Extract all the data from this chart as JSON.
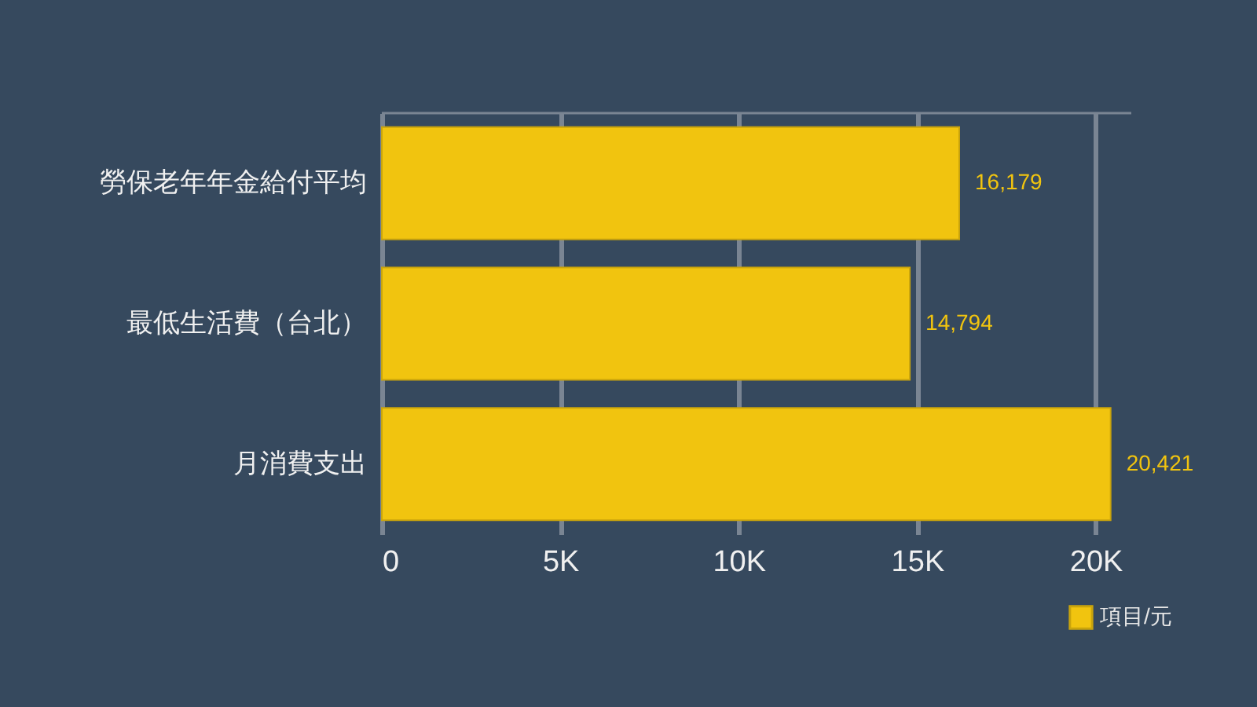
{
  "chart_data": {
    "type": "bar",
    "orientation": "horizontal",
    "categories": [
      "勞保老年年金給付平均",
      "最低生活費（台北）",
      "月消費支出"
    ],
    "series": [
      {
        "name": "項目/元",
        "color": "#f1c40f",
        "values": [
          16179,
          14794,
          20421
        ],
        "value_labels": [
          "16,179",
          "14,794",
          "20,421"
        ]
      }
    ],
    "xlim": [
      0,
      21000
    ],
    "xticks": [
      0,
      {
        "value": 5000,
        "label": "5K"
      },
      {
        "value": 10000,
        "label": "10K"
      },
      {
        "value": 15000,
        "label": "15K"
      },
      {
        "value": 20000,
        "label": "20K"
      }
    ],
    "grid": "x",
    "legend": "bottom right"
  }
}
